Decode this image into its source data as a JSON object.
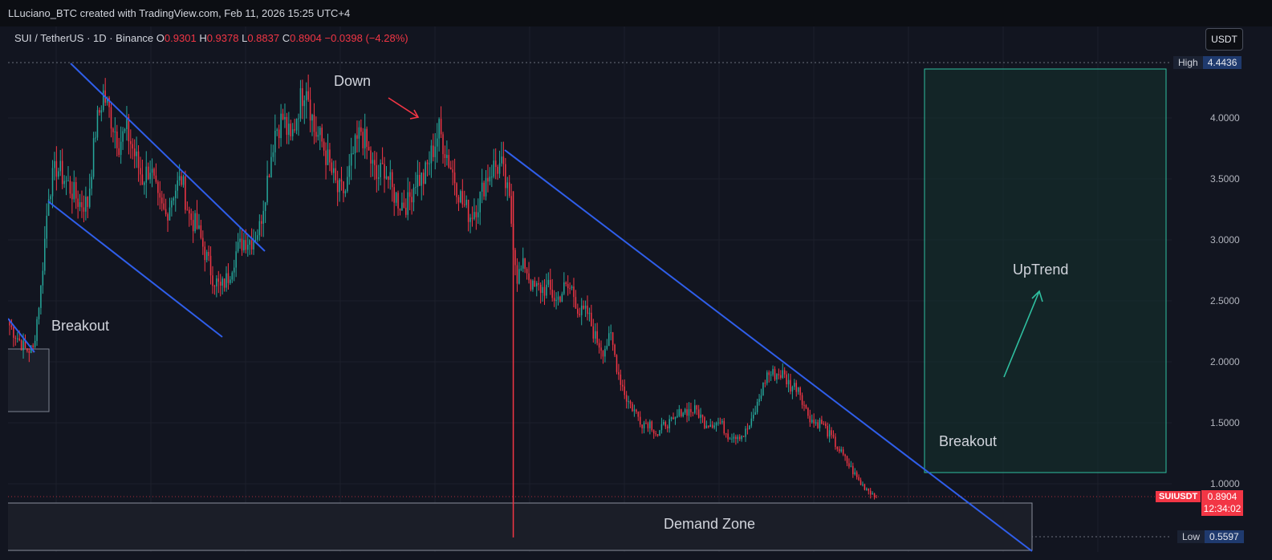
{
  "header": {
    "attribution": "LLuciano_BTC created with TradingView.com, Feb 11, 2026 15:25 UTC+4"
  },
  "legend": {
    "symbol": "SUI / TetherUS · 1D · Binance",
    "o_label": "O",
    "o_value": "0.9301",
    "h_label": "H",
    "h_value": "0.9378",
    "l_label": "L",
    "l_value": "0.8837",
    "c_label": "C",
    "c_value": "0.8904",
    "change": "−0.0398 (−4.28%)"
  },
  "currency_button": "USDT",
  "price_axis": {
    "ticks": [
      "4.0000",
      "3.5000",
      "3.0000",
      "2.5000",
      "2.0000",
      "1.5000",
      "1.0000"
    ],
    "high_label": "High",
    "high_value": "4.4436",
    "low_label": "Low",
    "low_value": "0.5597",
    "symbol_tag": "SUIUSDT",
    "last_price": "0.8904",
    "countdown": "12:34:02"
  },
  "annotations": {
    "down": "Down",
    "breakout_left": "Breakout",
    "uptrend": "UpTrend",
    "breakout_right": "Breakout",
    "demand_zone": "Demand Zone"
  },
  "colors": {
    "up": "#26a69a",
    "down": "#f23645",
    "trendline": "#2f5eea",
    "target_box": "#2fbfa0",
    "background": "#121520"
  },
  "chart_data": {
    "type": "candlestick",
    "symbol": "SUI / TetherUS",
    "interval": "1D",
    "last_ohlc": {
      "open": 0.9301,
      "high": 0.9378,
      "low": 0.8837,
      "close": 0.8904
    },
    "range_high": 4.4436,
    "range_low": 0.5597,
    "ylim": [
      0.5,
      4.5
    ],
    "close_path": [
      2.3,
      2.2,
      2.1,
      2.1,
      2.6,
      3.4,
      3.6,
      3.5,
      3.4,
      3.3,
      3.3,
      3.9,
      4.2,
      4.0,
      3.8,
      3.9,
      3.7,
      3.5,
      3.6,
      3.3,
      3.2,
      3.4,
      3.5,
      3.2,
      3.1,
      2.9,
      2.7,
      2.6,
      2.7,
      2.9,
      3.0,
      3.0,
      3.1,
      3.5,
      3.9,
      4.0,
      3.8,
      4.1,
      4.3,
      3.9,
      3.8,
      3.6,
      3.4,
      3.4,
      3.7,
      3.9,
      3.7,
      3.5,
      3.6,
      3.4,
      3.3,
      3.3,
      3.5,
      3.5,
      3.7,
      3.9,
      3.7,
      3.5,
      3.3,
      3.2,
      3.3,
      3.5,
      3.6,
      3.6,
      3.3,
      2.7,
      2.8,
      2.6,
      2.6,
      2.6,
      2.5,
      2.6,
      2.6,
      2.4,
      2.4,
      2.2,
      2.1,
      2.2,
      1.9,
      1.7,
      1.6,
      1.5,
      1.5,
      1.4,
      1.5,
      1.5,
      1.6,
      1.6,
      1.6,
      1.5,
      1.5,
      1.5,
      1.4,
      1.4,
      1.4,
      1.5,
      1.7,
      1.9,
      1.9,
      1.9,
      1.8,
      1.8,
      1.6,
      1.5,
      1.5,
      1.4,
      1.3,
      1.2,
      1.1,
      1.0,
      0.95,
      0.89
    ]
  }
}
